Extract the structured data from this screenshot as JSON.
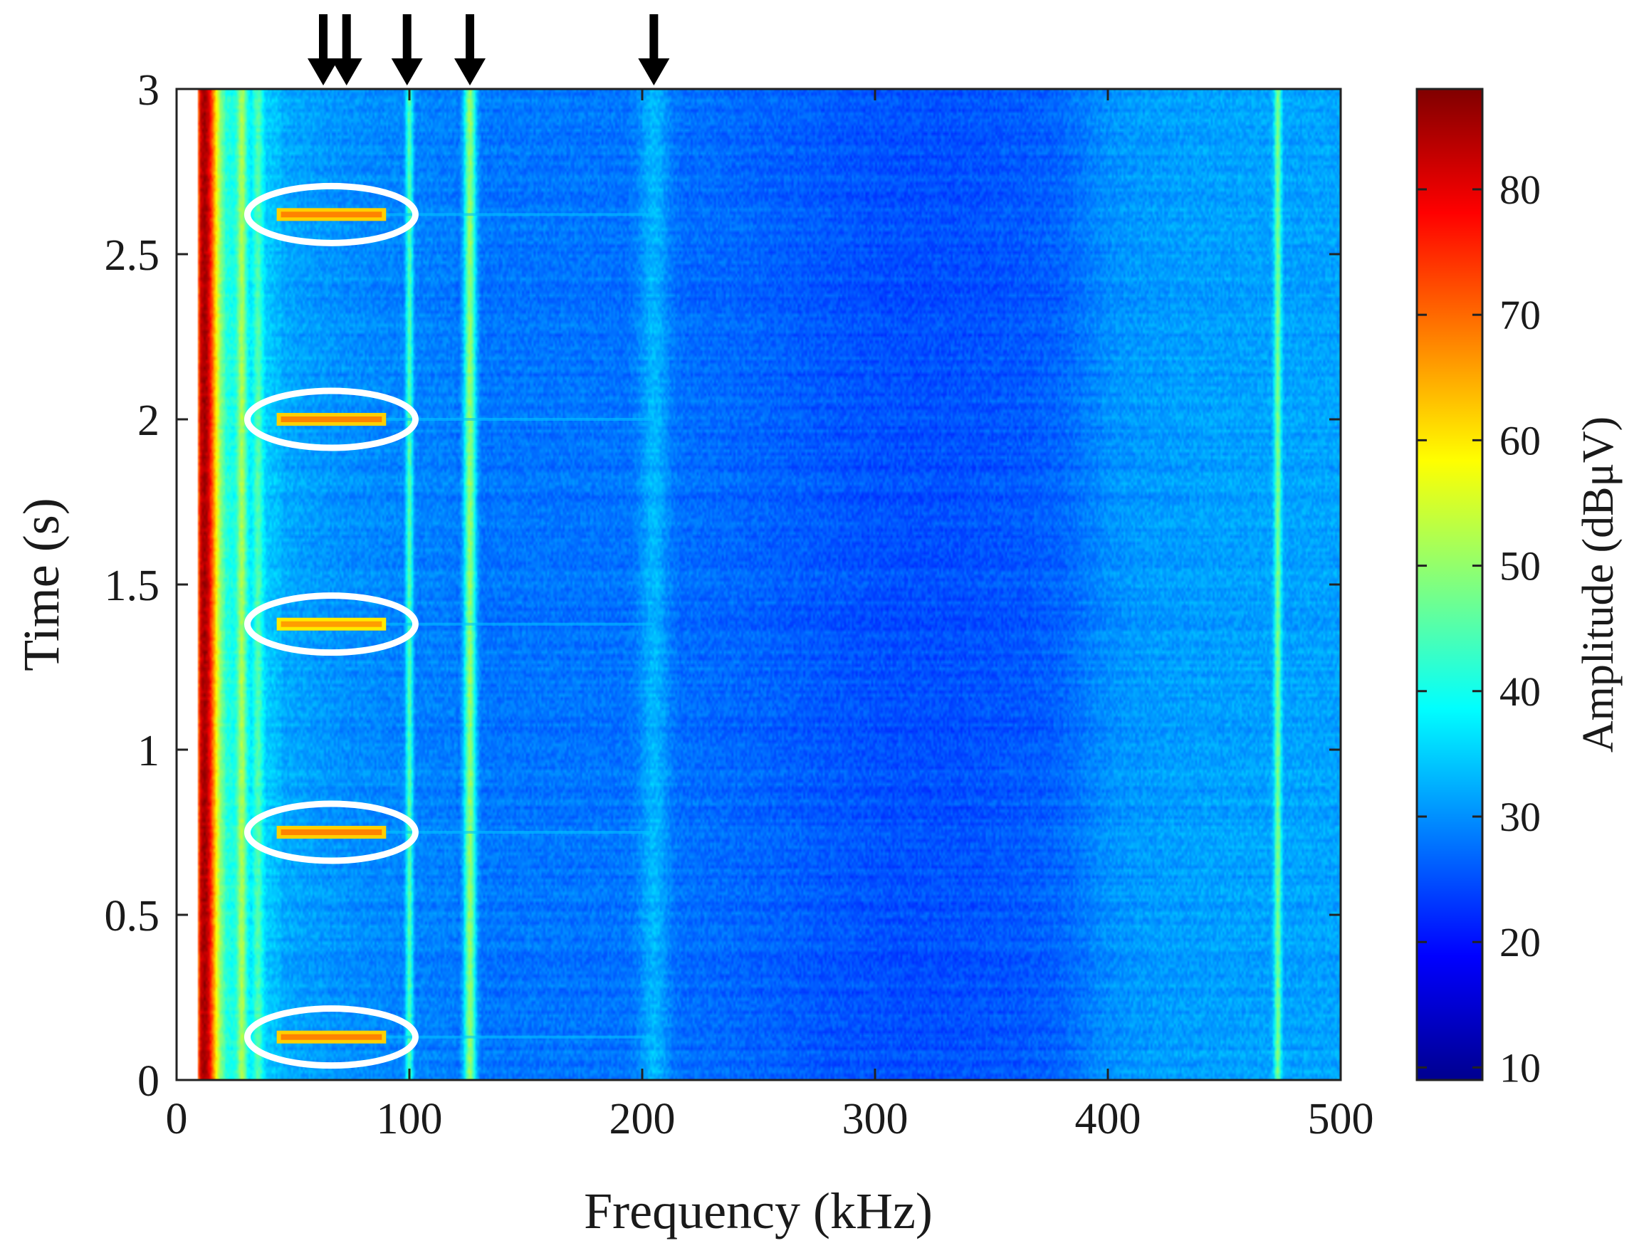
{
  "chart_data": {
    "type": "heatmap",
    "xlabel": "Frequency (kHz)",
    "ylabel": "Time (s)",
    "xlim": [
      0,
      500
    ],
    "ylim": [
      0,
      3
    ],
    "xticks": [
      "0",
      "100",
      "200",
      "300",
      "400",
      "500"
    ],
    "yticks": [
      "0",
      "0.5",
      "1",
      "1.5",
      "2",
      "2.5",
      "3"
    ],
    "colorbar": {
      "label": "Amplitude (dBμV)",
      "range": [
        9,
        88
      ],
      "ticks": [
        "10",
        "20",
        "30",
        "40",
        "50",
        "60",
        "70",
        "80"
      ],
      "colormap": "jet"
    },
    "background_level_db": 28,
    "constant_lines": [
      {
        "freq_khz": 12,
        "level_db": 85,
        "width_khz": 5
      },
      {
        "freq_khz": 28,
        "level_db": 52,
        "width_khz": 2
      },
      {
        "freq_khz": 35,
        "level_db": 45,
        "width_khz": 2
      },
      {
        "freq_khz": 100,
        "level_db": 45,
        "width_khz": 1.5
      },
      {
        "freq_khz": 126,
        "level_db": 50,
        "width_khz": 2.5
      },
      {
        "freq_khz": 205,
        "level_db": 33,
        "width_khz": 6
      },
      {
        "freq_khz": 473,
        "level_db": 48,
        "width_khz": 1.5
      }
    ],
    "bursts": [
      {
        "time_s": 0.13,
        "freq_start_khz": 43,
        "freq_end_khz": 90,
        "level_db": 68
      },
      {
        "time_s": 0.75,
        "freq_start_khz": 43,
        "freq_end_khz": 90,
        "level_db": 68
      },
      {
        "time_s": 1.38,
        "freq_start_khz": 43,
        "freq_end_khz": 90,
        "level_db": 66
      },
      {
        "time_s": 2.0,
        "freq_start_khz": 43,
        "freq_end_khz": 90,
        "level_db": 68
      },
      {
        "time_s": 2.62,
        "freq_start_khz": 43,
        "freq_end_khz": 90,
        "level_db": 68
      }
    ],
    "annotations": {
      "ellipses_around_bursts_color": "#ffffff",
      "arrow_marker_freqs_khz": [
        63,
        73,
        99,
        126,
        205
      ],
      "arrow_color": "#000000"
    }
  }
}
